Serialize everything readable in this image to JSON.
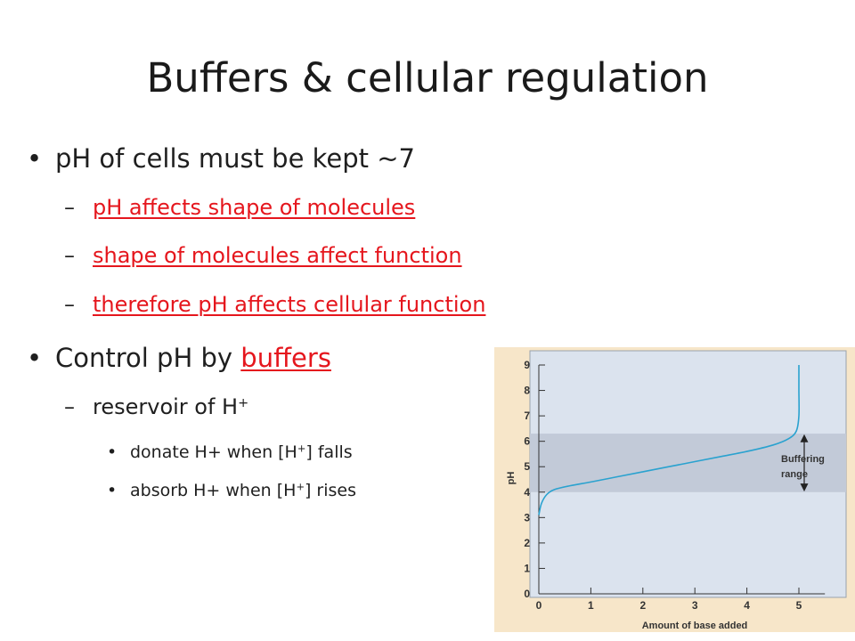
{
  "slide": {
    "title": "Buffers & cellular regulation",
    "bullets": {
      "b1": "pH of  cells must be kept ~7",
      "b1_sub1": "pH affects shape of molecules",
      "b1_sub2": "shape of molecules affect function",
      "b1_sub3": "therefore pH affects cellular function",
      "b2_prefix": "Control pH by ",
      "b2_link": "buffers",
      "b2_sub1_text": "reservoir of H",
      "b2_sub1_sup": "+",
      "b2_sub1_sub1_a": "donate H+ when [H",
      "b2_sub1_sub1_sup": "+",
      "b2_sub1_sub1_b": "] falls",
      "b2_sub1_sub2_a": "absorb H+ when [H",
      "b2_sub1_sub2_sup": "+",
      "b2_sub1_sub2_b": "] rises"
    },
    "symbols": {
      "bullet": "•",
      "dash": "–"
    }
  },
  "chart_data": {
    "type": "line",
    "xlabel": "Amount of base added",
    "ylabel": "pH",
    "xlim": [
      0,
      5.5
    ],
    "ylim": [
      0,
      9
    ],
    "x_ticks": [
      0,
      1,
      2,
      3,
      4,
      5
    ],
    "y_ticks": [
      0,
      1,
      2,
      3,
      4,
      5,
      6,
      7,
      8,
      9
    ],
    "band": {
      "label_line1": "Buffering",
      "label_line2": "range",
      "from": 4,
      "to": 6.3
    },
    "series": [
      {
        "color": "#2aa2cf",
        "x": [
          0,
          0.05,
          0.15,
          0.3,
          0.6,
          1.0,
          1.5,
          2.0,
          2.5,
          3.0,
          3.5,
          4.0,
          4.5,
          4.8,
          4.95,
          5.0,
          5.0,
          5.0,
          5.0
        ],
        "y": [
          3.1,
          3.55,
          3.9,
          4.1,
          4.25,
          4.4,
          4.6,
          4.8,
          5.0,
          5.2,
          5.4,
          5.6,
          5.85,
          6.1,
          6.4,
          7.0,
          8.0,
          8.5,
          9.0
        ]
      }
    ],
    "colors": {
      "frame": "#f7e6c9",
      "plot": "#dbe3ee",
      "band": "#c2cad8",
      "axis": "#333333"
    }
  }
}
